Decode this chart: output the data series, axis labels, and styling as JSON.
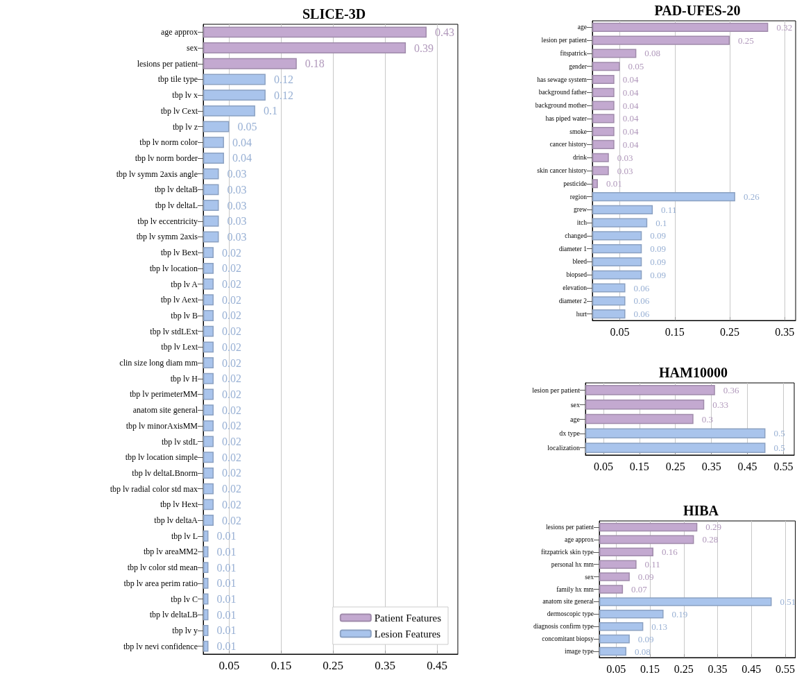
{
  "chart_data": [
    {
      "type": "bar",
      "orientation": "horizontal",
      "title": "SLICE-3D",
      "categories": [
        "age approx",
        "sex",
        "lesions per patient",
        "tbp tile type",
        "tbp lv x",
        "tbp lv Cext",
        "tbp lv z",
        "tbp lv norm color",
        "tbp lv norm border",
        "tbp lv symm 2axis angle",
        "tbp lv deltaB",
        "tbp lv deltaL",
        "tbp lv eccentricity",
        "tbp lv symm 2axis",
        "tbp lv Bext",
        "tbp lv location",
        "tbp lv A",
        "tbp lv Aext",
        "tbp lv B",
        "tbp lv stdLExt",
        "tbp lv Lext",
        "clin size long diam mm",
        "tbp lv H",
        "tbp lv perimeterMM",
        "anatom site general",
        "tbp lv minorAxisMM",
        "tbp lv stdL",
        "tbp lv location simple",
        "tbp lv deltaLBnorm",
        "tbp lv radial color std max",
        "tbp lv Hext",
        "tbp lv deltaA",
        "tbp lv L",
        "tbp lv areaMM2",
        "tbp lv color std mean",
        "tbp lv area perim ratio",
        "tbp lv C",
        "tbp lv deltaLB",
        "tbp lv y",
        "tbp lv nevi confidence"
      ],
      "series": [
        {
          "name": "Patient Features",
          "color": "#c3a9d0",
          "values": [
            0.43,
            0.39,
            0.18,
            null,
            null,
            null,
            null,
            null,
            null,
            null,
            null,
            null,
            null,
            null,
            null,
            null,
            null,
            null,
            null,
            null,
            null,
            null,
            null,
            null,
            null,
            null,
            null,
            null,
            null,
            null,
            null,
            null,
            null,
            null,
            null,
            null,
            null,
            null,
            null,
            null
          ]
        },
        {
          "name": "Lesion Features",
          "color": "#a9c4ec",
          "values": [
            null,
            null,
            null,
            0.12,
            0.12,
            0.1,
            0.05,
            0.04,
            0.04,
            0.03,
            0.03,
            0.03,
            0.03,
            0.03,
            0.02,
            0.02,
            0.02,
            0.02,
            0.02,
            0.02,
            0.02,
            0.02,
            0.02,
            0.02,
            0.02,
            0.02,
            0.02,
            0.02,
            0.02,
            0.02,
            0.02,
            0.02,
            0.01,
            0.01,
            0.01,
            0.01,
            0.01,
            0.01,
            0.01,
            0.01
          ]
        }
      ],
      "xlim": [
        0,
        0.49
      ],
      "xticks": [
        0.05,
        0.15,
        0.25,
        0.35,
        0.45
      ],
      "grid": "x",
      "data_labels": true,
      "legend": "bottom right"
    },
    {
      "type": "bar",
      "orientation": "horizontal",
      "title": "PAD-UFES-20",
      "categories": [
        "age",
        "lesion per patient",
        "fitspatrick",
        "gender",
        "has sewage system",
        "background father",
        "background mother",
        "has piped water",
        "smoke",
        "cancer history",
        "drink",
        "skin cancer history",
        "pesticide",
        "region",
        "grew",
        "itch",
        "changed",
        "diameter 1",
        "bleed",
        "biopsed",
        "elevation",
        "diameter 2",
        "hurt"
      ],
      "series": [
        {
          "color": "#c3a9d0",
          "values": [
            0.32,
            0.25,
            0.08,
            0.05,
            0.04,
            0.04,
            0.04,
            0.04,
            0.04,
            0.04,
            0.03,
            0.03,
            0.01,
            null,
            null,
            null,
            null,
            null,
            null,
            null,
            null,
            null,
            null
          ]
        },
        {
          "color": "#a9c4ec",
          "values": [
            null,
            null,
            null,
            null,
            null,
            null,
            null,
            null,
            null,
            null,
            null,
            null,
            null,
            0.26,
            0.11,
            0.1,
            0.09,
            0.09,
            0.09,
            0.09,
            0.06,
            0.06,
            0.06
          ]
        }
      ],
      "xlim": [
        0,
        0.37
      ],
      "xticks": [
        0.05,
        0.15,
        0.25,
        0.35
      ],
      "grid": "x",
      "data_labels": true
    },
    {
      "type": "bar",
      "orientation": "horizontal",
      "title": "HAM10000",
      "categories": [
        "lesion per patient",
        "sex",
        "age",
        "dx type",
        "localization"
      ],
      "series": [
        {
          "color": "#c3a9d0",
          "values": [
            0.36,
            0.33,
            0.3,
            null,
            null
          ]
        },
        {
          "color": "#a9c4ec",
          "values": [
            null,
            null,
            null,
            0.5,
            0.5
          ]
        }
      ],
      "xlim": [
        0,
        0.58
      ],
      "xticks": [
        0.05,
        0.15,
        0.25,
        0.35,
        0.45,
        0.55
      ],
      "grid": "x",
      "data_labels": true
    },
    {
      "type": "bar",
      "orientation": "horizontal",
      "title": "HIBA",
      "categories": [
        "lesions per patient",
        "age approx",
        "fitzpatrick skin type",
        "personal hx mm",
        "sex",
        "family hx mm",
        "anatom site general",
        "dermoscopic type",
        "diagnosis confirm type",
        "concomitant biopsy",
        "image type"
      ],
      "series": [
        {
          "color": "#c3a9d0",
          "values": [
            0.29,
            0.28,
            0.16,
            0.11,
            0.09,
            0.07,
            null,
            null,
            null,
            null,
            null
          ]
        },
        {
          "color": "#a9c4ec",
          "values": [
            null,
            null,
            null,
            null,
            null,
            null,
            0.51,
            0.19,
            0.13,
            0.09,
            0.08
          ]
        }
      ],
      "xlim": [
        0,
        0.58
      ],
      "xticks": [
        0.05,
        0.15,
        0.25,
        0.35,
        0.45,
        0.55
      ],
      "grid": "x",
      "data_labels": true
    }
  ]
}
